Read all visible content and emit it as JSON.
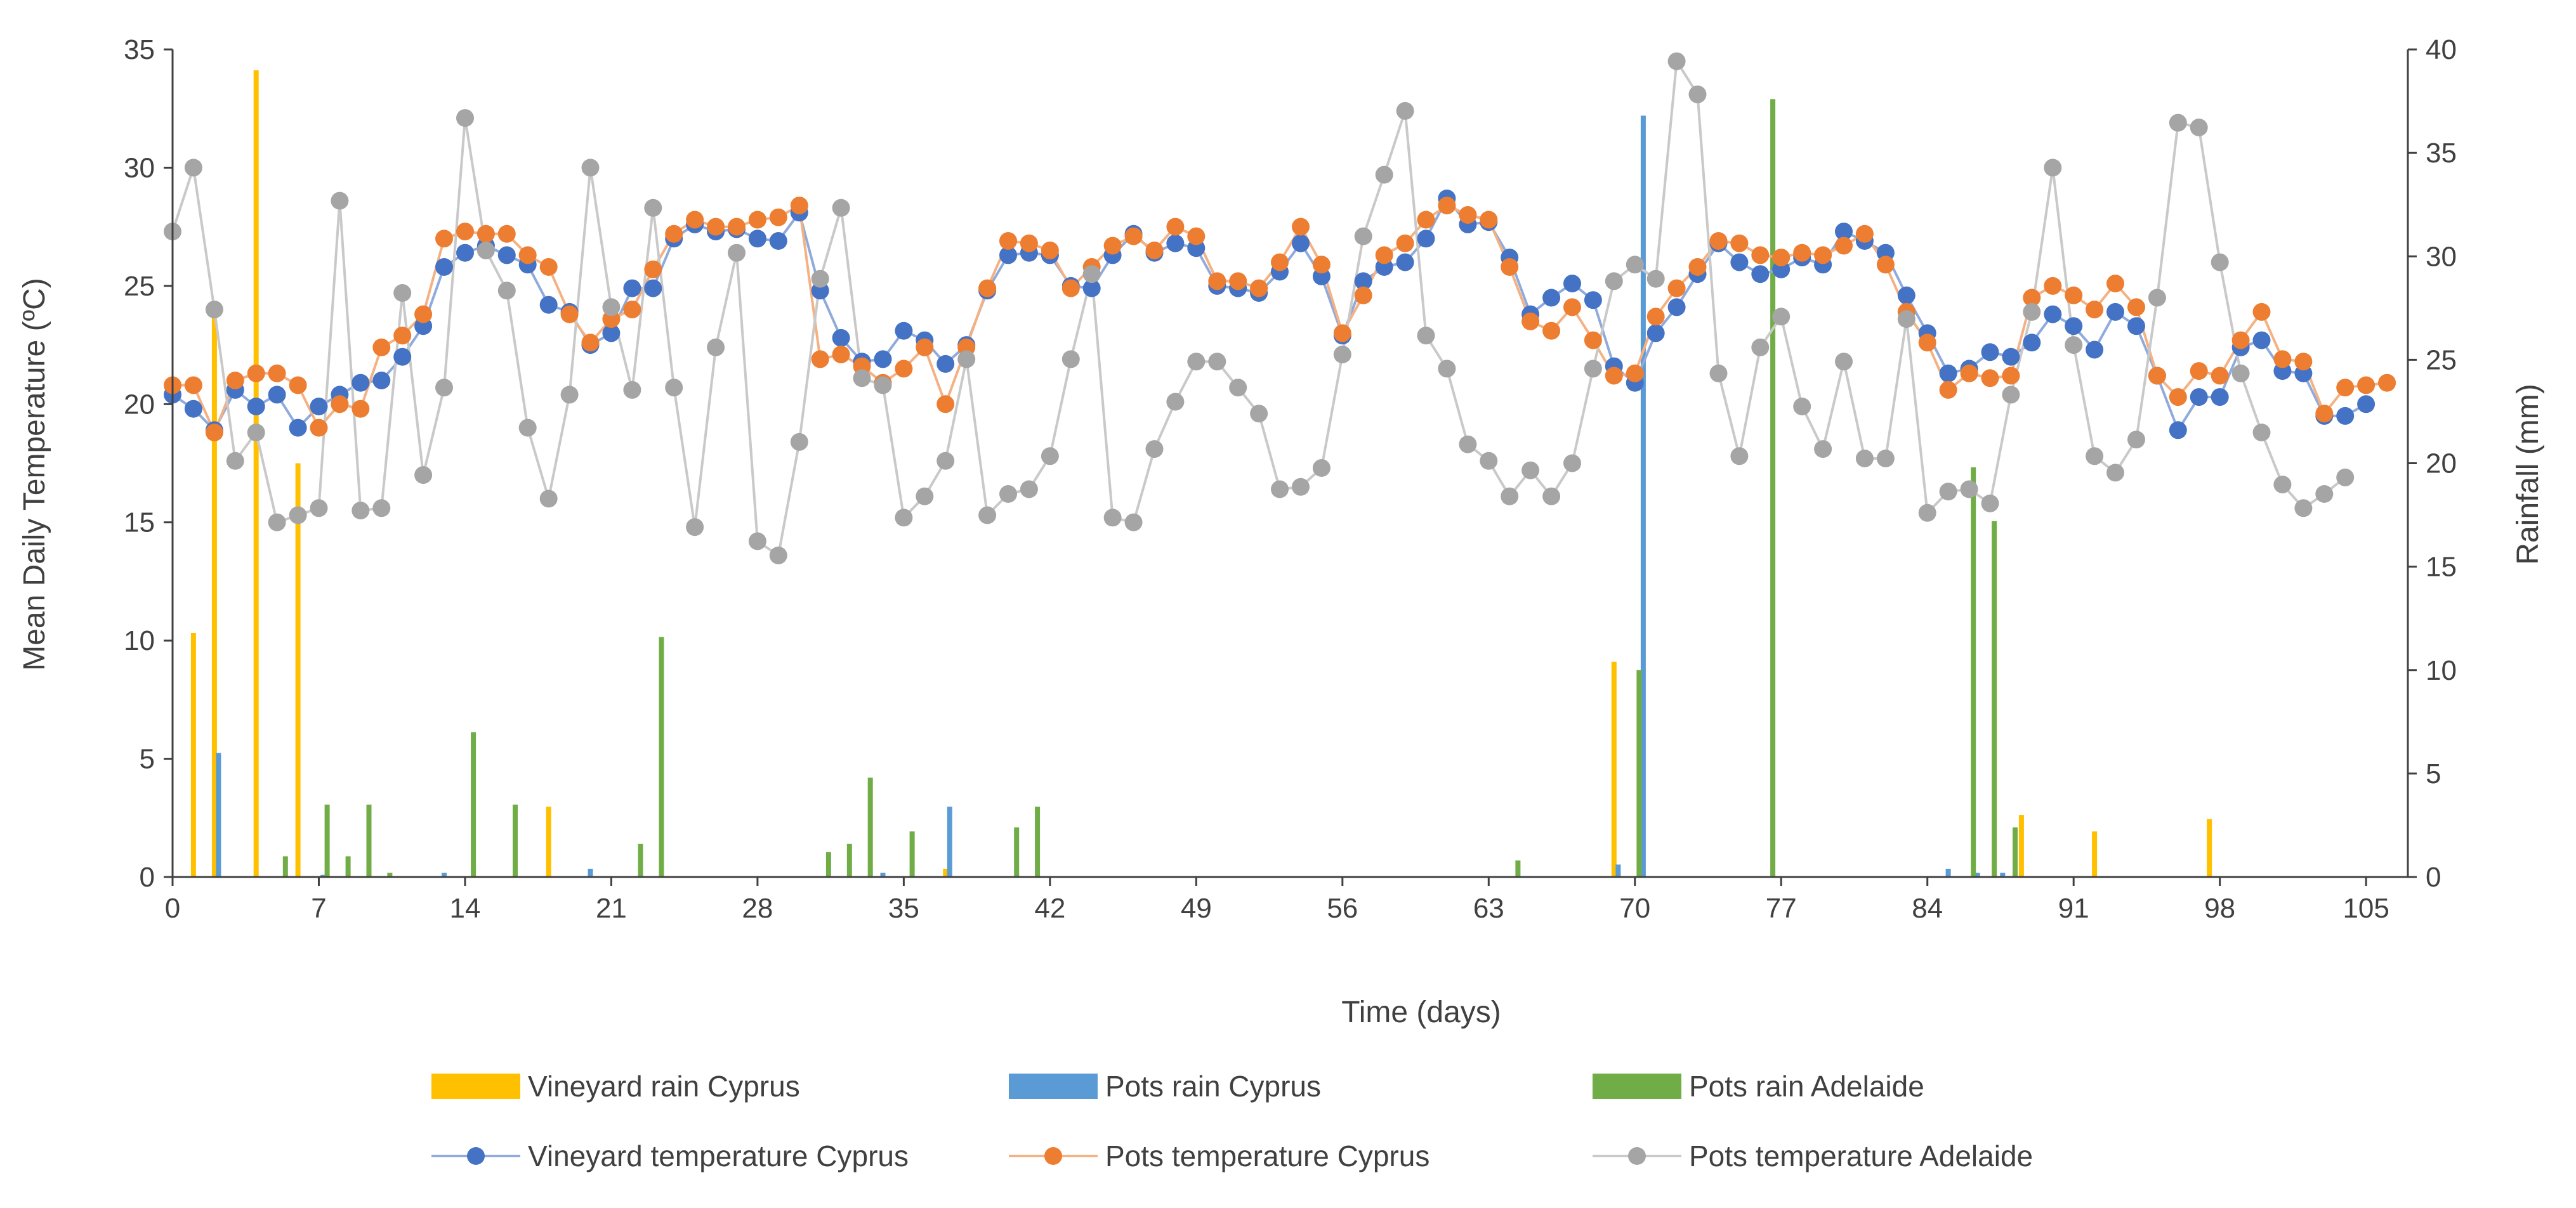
{
  "chart_data": {
    "type": "line",
    "title": "",
    "xlabel": "Time (days)",
    "ylabel": "Mean Daily Temperature (ºC)",
    "y2label": "Rainfall (mm)",
    "xlim": [
      0,
      107
    ],
    "ylim": [
      0,
      35
    ],
    "y2lim": [
      0,
      40
    ],
    "xticks": [
      0,
      7,
      14,
      21,
      28,
      35,
      42,
      49,
      56,
      63,
      70,
      77,
      84,
      91,
      98,
      105
    ],
    "yticks": [
      0,
      5,
      10,
      15,
      20,
      25,
      30,
      35
    ],
    "y2ticks": [
      0,
      5,
      10,
      15,
      20,
      25,
      30,
      35,
      40
    ],
    "grid": false,
    "legend_position": "bottom",
    "colors": {
      "vineyard_rain": "#FFC000",
      "pots_rain_cyprus": "#5B9BD5",
      "pots_rain_adelaide": "#70AD47",
      "vineyard_temp": "#4472C4",
      "vineyard_temp_line": "#8FAADC",
      "pots_temp_cyprus": "#ED7D31",
      "pots_temp_cyprus_line": "#F4B183",
      "pots_temp_adelaide": "#A5A5A5",
      "pots_temp_adelaide_line": "#C9C9C9",
      "axis": "#404040"
    },
    "legend": [
      {
        "key": "vineyard-rain-cyprus",
        "label": "Vineyard rain Cyprus",
        "kind": "bar"
      },
      {
        "key": "pots-rain-cyprus",
        "label": "Pots rain Cyprus",
        "kind": "bar"
      },
      {
        "key": "pots-rain-adelaide",
        "label": "Pots rain Adelaide",
        "kind": "bar"
      },
      {
        "key": "vineyard-temperature-cyprus",
        "label": "Vineyard temperature Cyprus",
        "kind": "line"
      },
      {
        "key": "pots-temperature-cyprus",
        "label": "Pots temperature Cyprus",
        "kind": "line"
      },
      {
        "key": "pots-temperature-adelaide",
        "label": "Pots temperature Adelaide",
        "kind": "line"
      }
    ],
    "rain_series": [
      {
        "key": "vineyard-rain-cyprus",
        "name": "Vineyard rain Cyprus",
        "axis": "right",
        "points": [
          [
            1,
            11.8
          ],
          [
            2,
            27.2
          ],
          [
            4,
            39
          ],
          [
            6,
            20
          ],
          [
            18,
            3.4
          ],
          [
            37,
            0.4
          ],
          [
            69,
            10.4
          ],
          [
            88.5,
            3
          ],
          [
            92,
            2.2
          ],
          [
            97.5,
            2.8
          ]
        ]
      },
      {
        "key": "pots-rain-cyprus",
        "name": "Pots rain Cyprus",
        "axis": "right",
        "points": [
          [
            2.2,
            6
          ],
          [
            7.2,
            0.1
          ],
          [
            13,
            0.2
          ],
          [
            20,
            0.4
          ],
          [
            34,
            0.2
          ],
          [
            37.2,
            3.4
          ],
          [
            69.2,
            0.6
          ],
          [
            70.4,
            36.8
          ],
          [
            85,
            0.4
          ],
          [
            86.4,
            0.2
          ],
          [
            87.6,
            0.2
          ]
        ]
      },
      {
        "key": "pots-rain-adelaide",
        "name": "Pots rain Adelaide",
        "axis": "right",
        "points": [
          [
            5.4,
            1
          ],
          [
            7.4,
            3.5
          ],
          [
            8.4,
            1
          ],
          [
            9.4,
            3.5
          ],
          [
            10.4,
            0.2
          ],
          [
            14.4,
            7
          ],
          [
            16.4,
            3.5
          ],
          [
            22.4,
            1.6
          ],
          [
            23.4,
            11.6
          ],
          [
            31.4,
            1.2
          ],
          [
            32.4,
            1.6
          ],
          [
            33.4,
            4.8
          ],
          [
            35.4,
            2.2
          ],
          [
            40.4,
            2.4
          ],
          [
            41.4,
            3.4
          ],
          [
            64.4,
            0.8
          ],
          [
            70.2,
            10
          ],
          [
            76.6,
            37.6
          ],
          [
            86.2,
            19.8
          ],
          [
            87.2,
            17.2
          ],
          [
            88.2,
            2.4
          ]
        ]
      }
    ],
    "temp_series": [
      {
        "key": "vineyard-temperature-cyprus",
        "name": "Vineyard temperature Cyprus",
        "axis": "left",
        "x": [
          0,
          1,
          2,
          3,
          4,
          5,
          6,
          7,
          8,
          9,
          10,
          11,
          12,
          13,
          14,
          15,
          16,
          17,
          18,
          19,
          20,
          21,
          22,
          23,
          24,
          25,
          26,
          27,
          28,
          29,
          30,
          31,
          32,
          33,
          34,
          35,
          36,
          37,
          38,
          39,
          40,
          41,
          42,
          43,
          44,
          45,
          46,
          47,
          48,
          49,
          50,
          51,
          52,
          53,
          54,
          55,
          56,
          57,
          58,
          59,
          60,
          61,
          62,
          63,
          64,
          65,
          66,
          67,
          68,
          69,
          70,
          71,
          72,
          73,
          74,
          75,
          76,
          77,
          78,
          79,
          80,
          81,
          82,
          83,
          84,
          85,
          86,
          87,
          88,
          89,
          90,
          91,
          92,
          93,
          94,
          95,
          96,
          97,
          98,
          99,
          100,
          101,
          102,
          103,
          104,
          105
        ],
        "y": [
          20.4,
          19.8,
          18.9,
          20.6,
          19.9,
          20.4,
          19.0,
          19.9,
          20.4,
          20.9,
          21.0,
          22.0,
          23.3,
          25.8,
          26.4,
          26.7,
          26.3,
          25.9,
          24.2,
          23.9,
          22.5,
          23.0,
          24.9,
          24.9,
          27.0,
          27.6,
          27.3,
          27.4,
          27.0,
          26.9,
          28.1,
          24.8,
          22.8,
          21.8,
          21.9,
          23.1,
          22.7,
          21.7,
          22.5,
          24.8,
          26.3,
          26.4,
          26.3,
          25.0,
          24.9,
          26.3,
          27.2,
          26.4,
          26.8,
          26.6,
          25.0,
          24.9,
          24.7,
          25.6,
          26.8,
          25.4,
          22.9,
          25.2,
          25.8,
          26.0,
          27.0,
          28.7,
          27.6,
          27.7,
          26.2,
          23.8,
          24.5,
          25.1,
          24.4,
          21.6,
          20.9,
          23.0,
          24.1,
          25.5,
          26.8,
          26.0,
          25.5,
          25.7,
          26.2,
          25.9,
          27.3,
          26.9,
          26.4,
          24.6,
          23.0,
          21.3,
          21.5,
          22.2,
          22.0,
          22.6,
          23.8,
          23.3,
          22.3,
          23.9,
          23.3,
          21.2,
          18.9,
          20.3,
          20.3,
          22.4,
          22.7,
          21.4,
          21.3,
          19.5,
          19.5,
          20.0
        ]
      },
      {
        "key": "pots-temperature-cyprus",
        "name": "Pots temperature Cyprus",
        "axis": "left",
        "x": [
          0,
          1,
          2,
          3,
          4,
          5,
          6,
          7,
          8,
          9,
          10,
          11,
          12,
          13,
          14,
          15,
          16,
          17,
          18,
          19,
          20,
          21,
          22,
          23,
          24,
          25,
          26,
          27,
          28,
          29,
          30,
          31,
          32,
          33,
          34,
          35,
          36,
          37,
          38,
          39,
          40,
          41,
          42,
          43,
          44,
          45,
          46,
          47,
          48,
          49,
          50,
          51,
          52,
          53,
          54,
          55,
          56,
          57,
          58,
          59,
          60,
          61,
          62,
          63,
          64,
          65,
          66,
          67,
          68,
          69,
          70,
          71,
          72,
          73,
          74,
          75,
          76,
          77,
          78,
          79,
          80,
          81,
          82,
          83,
          84,
          85,
          86,
          87,
          88,
          89,
          90,
          91,
          92,
          93,
          94,
          95,
          96,
          97,
          98,
          99,
          100,
          101,
          102,
          103,
          104,
          105,
          106
        ],
        "y": [
          20.8,
          20.8,
          18.8,
          21.0,
          21.3,
          21.3,
          20.8,
          19.0,
          20.0,
          19.8,
          22.4,
          22.9,
          23.8,
          27.0,
          27.3,
          27.2,
          27.2,
          26.3,
          25.8,
          23.8,
          22.6,
          23.6,
          24.0,
          25.7,
          27.2,
          27.8,
          27.5,
          27.5,
          27.8,
          27.9,
          28.4,
          21.9,
          22.1,
          21.6,
          20.9,
          21.5,
          22.4,
          20.0,
          22.4,
          24.9,
          26.9,
          26.8,
          26.5,
          24.9,
          25.8,
          26.7,
          27.1,
          26.5,
          27.5,
          27.1,
          25.2,
          25.2,
          24.9,
          26.0,
          27.5,
          25.9,
          23.0,
          24.6,
          26.3,
          26.8,
          27.8,
          28.4,
          28.0,
          27.8,
          25.8,
          23.5,
          23.1,
          24.1,
          22.7,
          21.2,
          21.3,
          23.7,
          24.9,
          25.8,
          26.9,
          26.8,
          26.3,
          26.2,
          26.4,
          26.3,
          26.7,
          27.2,
          25.9,
          23.9,
          22.6,
          20.6,
          21.3,
          21.1,
          21.2,
          24.5,
          25.0,
          24.6,
          24.0,
          25.1,
          24.1,
          21.2,
          20.3,
          21.4,
          21.2,
          22.7,
          23.9,
          21.9,
          21.8,
          19.6,
          20.7,
          20.8,
          20.9
        ]
      },
      {
        "key": "pots-temperature-adelaide",
        "name": "Pots temperature Adelaide",
        "axis": "left",
        "x": [
          0,
          1,
          2,
          3,
          4,
          5,
          6,
          7,
          8,
          9,
          10,
          11,
          12,
          13,
          14,
          15,
          16,
          17,
          18,
          19,
          20,
          21,
          22,
          23,
          24,
          25,
          26,
          27,
          28,
          29,
          30,
          31,
          32,
          33,
          34,
          35,
          36,
          37,
          38,
          39,
          40,
          41,
          42,
          43,
          44,
          45,
          46,
          47,
          48,
          49,
          50,
          51,
          52,
          53,
          54,
          55,
          56,
          57,
          58,
          59,
          60,
          61,
          62,
          63,
          64,
          65,
          66,
          67,
          68,
          69,
          70,
          71,
          72,
          73,
          74,
          75,
          76,
          77,
          78,
          79,
          80,
          81,
          82,
          83,
          84,
          85,
          86,
          87,
          88,
          89,
          90,
          91,
          92,
          93,
          94,
          95,
          96,
          97,
          98,
          99,
          100,
          101,
          102,
          103,
          104
        ],
        "y": [
          27.3,
          30.0,
          24.0,
          17.6,
          18.8,
          15.0,
          15.3,
          15.6,
          28.6,
          15.5,
          15.6,
          24.7,
          17.0,
          20.7,
          32.1,
          26.5,
          24.8,
          19.0,
          16.0,
          20.4,
          30.0,
          24.1,
          20.6,
          28.3,
          20.7,
          14.8,
          22.4,
          26.4,
          14.2,
          13.6,
          18.4,
          25.3,
          28.3,
          21.1,
          20.8,
          15.2,
          16.1,
          17.6,
          21.9,
          15.3,
          16.2,
          16.4,
          17.8,
          21.9,
          25.5,
          15.2,
          15.0,
          18.1,
          20.1,
          21.8,
          21.8,
          20.7,
          19.6,
          16.4,
          16.5,
          17.3,
          22.1,
          27.1,
          29.7,
          32.4,
          22.9,
          21.5,
          18.3,
          17.6,
          16.1,
          17.2,
          16.1,
          17.5,
          21.5,
          25.2,
          25.9,
          25.3,
          34.5,
          33.1,
          21.3,
          17.8,
          22.4,
          23.7,
          19.9,
          18.1,
          21.8,
          17.7,
          17.7,
          23.6,
          15.4,
          16.3,
          16.4,
          15.8,
          20.4,
          23.9,
          30.0,
          22.5,
          17.8,
          17.1,
          18.5,
          24.5,
          31.9,
          31.7,
          26.0,
          21.3,
          18.8,
          16.6,
          15.6,
          16.2,
          16.9
        ]
      }
    ]
  }
}
